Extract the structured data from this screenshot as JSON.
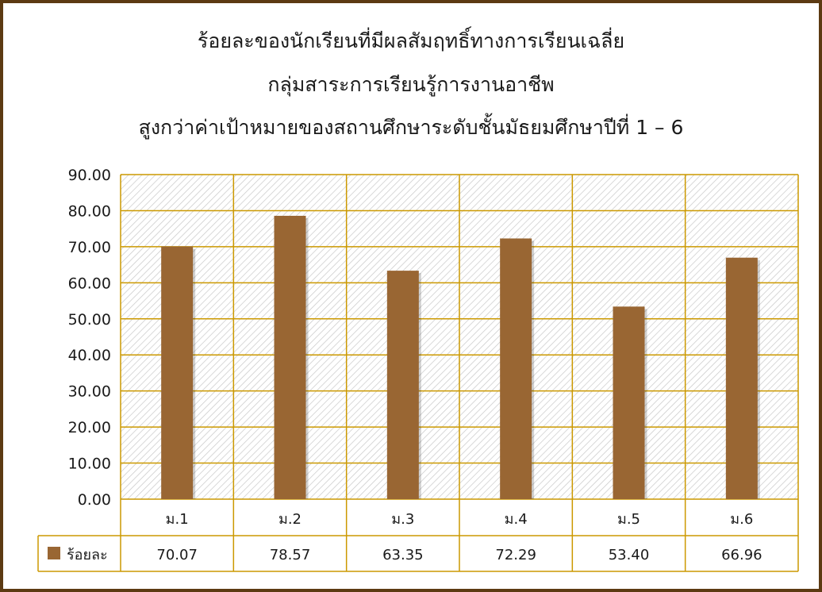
{
  "chart_data": {
    "type": "bar",
    "title_lines": [
      "ร้อยละของนักเรียนที่มีผลสัมฤทธิ์ทางการเรียนเฉลี่ย",
      "กลุ่มสาระการเรียนรู้การงานอาชีพ",
      "สูงกว่าค่าเป้าหมายของสถานศึกษาระดับชั้นมัธยมศึกษาปีที่ 1 – 6"
    ],
    "categories": [
      "ม.1",
      "ม.2",
      "ม.3",
      "ม.4",
      "ม.5",
      "ม.6"
    ],
    "series": [
      {
        "name": "ร้อยละ",
        "values": [
          70.07,
          78.57,
          63.35,
          72.29,
          53.4,
          66.96
        ],
        "value_labels": [
          "70.07",
          "78.57",
          "63.35",
          "72.29",
          "53.40",
          "66.96"
        ],
        "color": "#996633"
      }
    ],
    "y_ticks": [
      "0.00",
      "10.00",
      "20.00",
      "30.00",
      "40.00",
      "50.00",
      "60.00",
      "70.00",
      "80.00",
      "90.00"
    ],
    "ylim": [
      0,
      90
    ],
    "grid": true,
    "legend": "data-table",
    "colors": {
      "frame": "#5c3a12",
      "grid": "#cc9900",
      "hatch": "#c8c8c8",
      "bar": "#996633"
    }
  }
}
